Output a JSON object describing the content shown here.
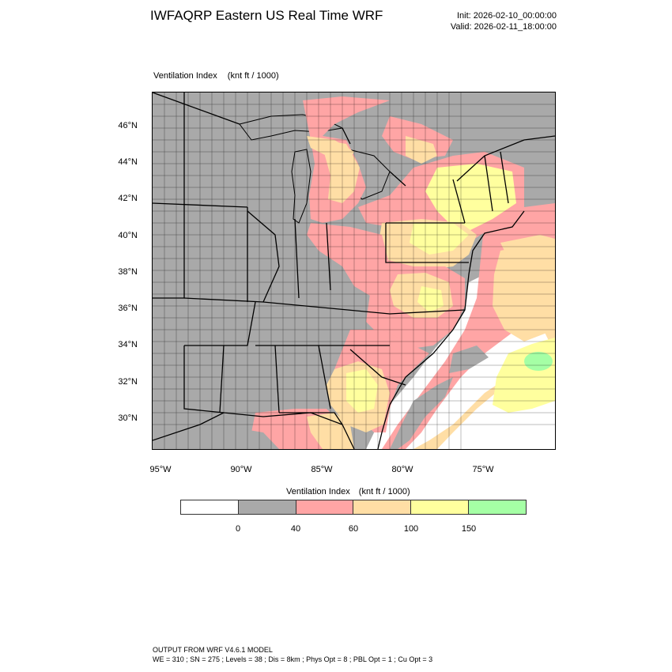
{
  "header": {
    "title": "IWFAQRP Eastern US Real Time WRF",
    "init": "Init: 2026-02-10_00:00:00",
    "valid": "Valid: 2026-02-11_18:00:00"
  },
  "map": {
    "title": "Ventilation Index",
    "units": "(knt ft / 1000)",
    "lat_labels": [
      "46°N",
      "44°N",
      "42°N",
      "40°N",
      "38°N",
      "36°N",
      "34°N",
      "32°N",
      "30°N"
    ],
    "lon_labels": [
      "95°W",
      "90°W",
      "85°W",
      "80°W",
      "75°W"
    ],
    "background_color": "#a9a9a9",
    "ocean_color": "#ffffff"
  },
  "colorbar": {
    "title": "Ventilation Index",
    "units": "(knt ft / 1000)",
    "colors": [
      "#ffffff",
      "#a9a9a9",
      "#ffa5a5",
      "#ffdea5",
      "#ffff9e",
      "#a5ffa5"
    ],
    "labels": [
      "0",
      "40",
      "60",
      "100",
      "150"
    ]
  },
  "footer": {
    "line1": "OUTPUT FROM WRF V4.6.1 MODEL",
    "line2": "WE = 310 ; SN = 275 ; Levels = 38 ; Dis = 8km ; Phys Opt = 8 ; PBL Opt = 1 ; Cu Opt = 3"
  }
}
